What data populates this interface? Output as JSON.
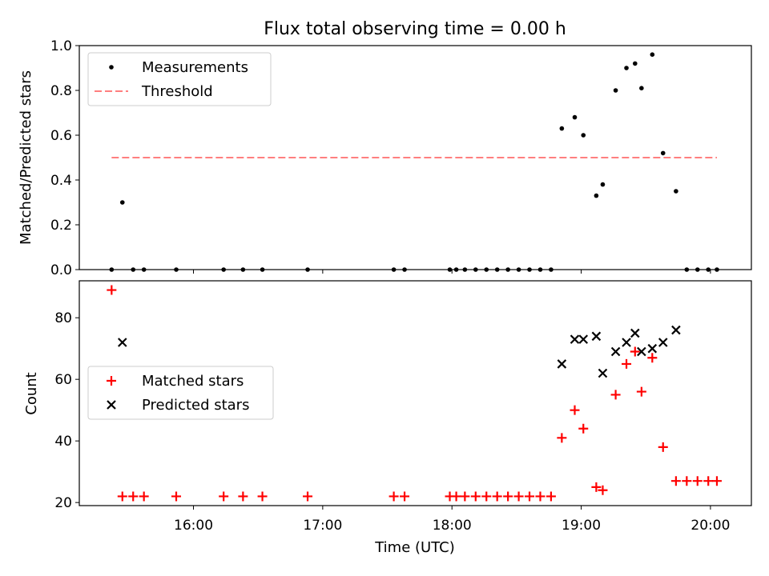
{
  "chart_data": [
    {
      "type": "scatter",
      "title": "Flux total observing time = 0.00 h",
      "xlabel": "",
      "ylabel": "Matched/Predicted stars",
      "ylim": [
        0,
        1.0
      ],
      "yticks": [
        "0.0",
        "0.2",
        "0.4",
        "0.6",
        "0.8",
        "1.0"
      ],
      "grid": false,
      "legend_position": "upper left",
      "series": [
        {
          "name": "Measurements",
          "color": "#000000",
          "marker": "dot",
          "x": [
            "15:22",
            "15:27",
            "15:32",
            "15:37",
            "15:52",
            "16:14",
            "16:23",
            "16:32",
            "16:53",
            "17:33",
            "17:38",
            "17:59",
            "18:02",
            "18:06",
            "18:11",
            "18:16",
            "18:21",
            "18:26",
            "18:31",
            "18:36",
            "18:41",
            "18:46",
            "18:51",
            "18:57",
            "19:01",
            "19:07",
            "19:10",
            "19:16",
            "19:21",
            "19:25",
            "19:28",
            "19:33",
            "19:38",
            "19:44",
            "19:49",
            "19:54",
            "19:59",
            "20:03"
          ],
          "y": [
            0.0,
            0.3,
            0.0,
            0.0,
            0.0,
            0.0,
            0.0,
            0.0,
            0.0,
            0.0,
            0.0,
            0.0,
            0.0,
            0.0,
            0.0,
            0.0,
            0.0,
            0.0,
            0.0,
            0.0,
            0.0,
            0.0,
            0.63,
            0.68,
            0.6,
            0.33,
            0.38,
            0.8,
            0.9,
            0.92,
            0.81,
            0.96,
            0.52,
            0.35,
            0.0,
            0.0,
            0.0,
            0.0
          ]
        },
        {
          "name": "Threshold",
          "color": "#ff7f7f",
          "style": "dashed",
          "x": [
            "15:22",
            "20:03"
          ],
          "y": [
            0.5,
            0.5
          ]
        }
      ]
    },
    {
      "type": "scatter",
      "title": "",
      "xlabel": "Time (UTC)",
      "ylabel": "Count",
      "ylim": [
        19,
        92
      ],
      "yticks": [
        "20",
        "40",
        "60",
        "80"
      ],
      "xlim": [
        "15:07",
        "20:19"
      ],
      "xticks": [
        "16:00",
        "17:00",
        "18:00",
        "19:00",
        "20:00"
      ],
      "grid": false,
      "legend_position": "center left",
      "series": [
        {
          "name": "Matched stars",
          "color": "#ff0000",
          "marker": "plus",
          "x": [
            "15:22",
            "15:27",
            "15:32",
            "15:37",
            "15:52",
            "16:14",
            "16:23",
            "16:32",
            "16:53",
            "17:33",
            "17:38",
            "17:59",
            "18:02",
            "18:06",
            "18:11",
            "18:16",
            "18:21",
            "18:26",
            "18:31",
            "18:36",
            "18:41",
            "18:46",
            "18:51",
            "18:57",
            "19:01",
            "19:07",
            "19:10",
            "19:16",
            "19:21",
            "19:25",
            "19:28",
            "19:33",
            "19:38",
            "19:44",
            "19:49",
            "19:54",
            "19:59",
            "20:03"
          ],
          "y": [
            89,
            22,
            22,
            22,
            22,
            22,
            22,
            22,
            22,
            22,
            22,
            22,
            22,
            22,
            22,
            22,
            22,
            22,
            22,
            22,
            22,
            22,
            41,
            50,
            44,
            25,
            24,
            55,
            65,
            69,
            56,
            67,
            38,
            27,
            27,
            27,
            27,
            27
          ]
        },
        {
          "name": "Predicted stars",
          "color": "#000000",
          "marker": "x",
          "x": [
            "15:27",
            "18:51",
            "18:57",
            "19:01",
            "19:07",
            "19:10",
            "19:16",
            "19:21",
            "19:25",
            "19:28",
            "19:33",
            "19:38",
            "19:44"
          ],
          "y": [
            72,
            65,
            73,
            73,
            74,
            62,
            69,
            72,
            75,
            69,
            70,
            72,
            76
          ]
        }
      ]
    }
  ]
}
